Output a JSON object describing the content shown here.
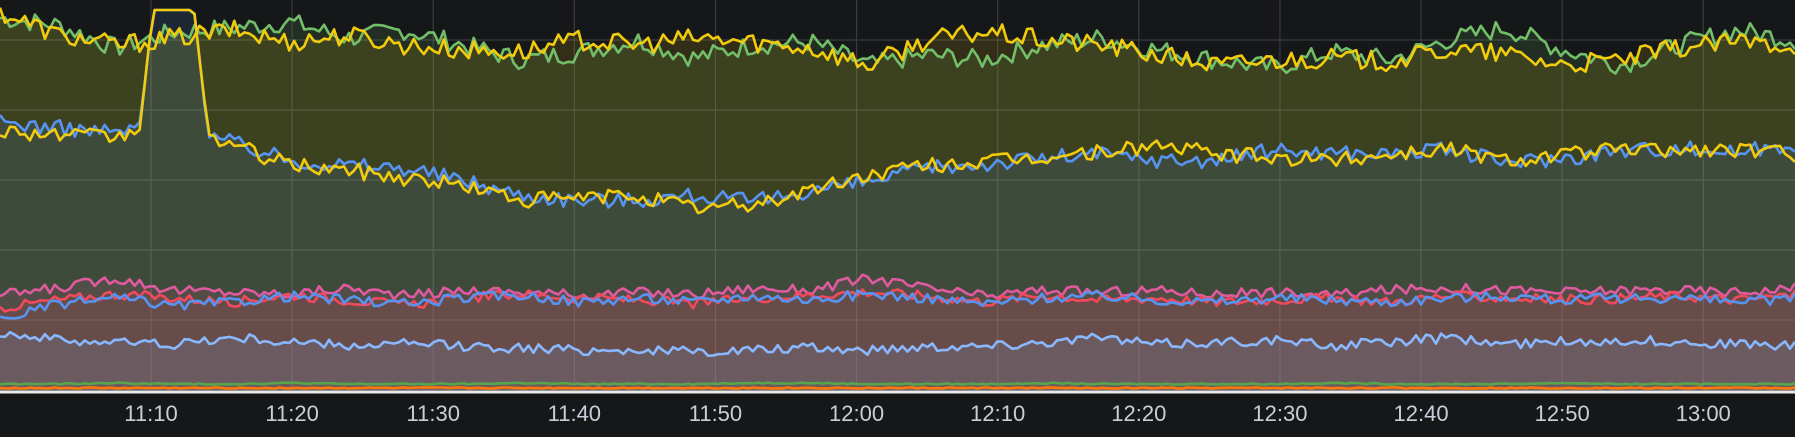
{
  "chart_data": {
    "type": "area",
    "x_ticks": [
      "11:10",
      "11:20",
      "11:30",
      "11:40",
      "11:50",
      "12:00",
      "12:10",
      "12:20",
      "12:30",
      "12:40",
      "12:50",
      "13:00"
    ],
    "x_start_minute": 659.3,
    "x_end_minute": 786.5,
    "ylim": [
      0,
      390
    ],
    "grid": true,
    "legend": "none",
    "series": [
      {
        "color": "#73bf69",
        "fill": "#73bf69",
        "values": [
          372,
          365,
          342,
          358,
          362,
          368,
          352,
          360,
          345,
          330,
          338,
          350,
          332,
          345,
          348,
          325,
          335,
          330,
          345,
          352,
          340,
          330,
          322,
          338,
          330,
          350,
          362,
          340,
          325,
          345,
          360,
          350
        ]
      },
      {
        "color": "#f2cc0c",
        "fill": "#f2cc0c",
        "values": [
          378,
          355,
          345,
          352,
          360,
          348,
          355,
          345,
          340,
          338,
          350,
          345,
          352,
          348,
          342,
          325,
          350,
          358,
          350,
          345,
          335,
          325,
          330,
          332,
          328,
          340,
          336,
          325,
          330,
          342,
          348,
          345
        ]
      },
      {
        "color": "#5794f2",
        "fill": "#5794f2",
        "spike": [
          3,
          380
        ],
        "values": [
          268,
          262,
          258,
          265,
          248,
          230,
          225,
          222,
          210,
          195,
          190,
          190,
          195,
          188,
          200,
          208,
          222,
          226,
          232,
          236,
          230,
          230,
          240,
          238,
          236,
          240,
          228,
          232,
          240,
          242,
          238,
          246
        ]
      },
      {
        "color": "#f2cc0c",
        "fill": "none",
        "spike": [
          3,
          380
        ],
        "values": [
          260,
          255,
          252,
          270,
          245,
          225,
          220,
          212,
          205,
          190,
          192,
          195,
          182,
          185,
          200,
          215,
          225,
          228,
          232,
          238,
          245,
          236,
          232,
          230,
          236,
          242,
          230,
          236,
          240,
          240,
          240,
          236
        ]
      },
      {
        "color": "#e05a9f",
        "fill": "#e05a9f",
        "values": [
          95,
          102,
          112,
          100,
          98,
          96,
          102,
          94,
          100,
          98,
          95,
          98,
          96,
          102,
          100,
          112,
          102,
          94,
          100,
          98,
          100,
          96,
          98,
          95,
          100,
          102,
          100,
          98,
          100,
          100,
          98,
          102
        ]
      },
      {
        "color": "#f2495c",
        "fill": "#f2495c",
        "values": [
          82,
          90,
          96,
          92,
          88,
          95,
          90,
          85,
          92,
          96,
          92,
          90,
          86,
          92,
          95,
          98,
          94,
          88,
          95,
          90,
          92,
          88,
          90,
          92,
          88,
          94,
          92,
          90,
          92,
          94,
          90,
          95
        ]
      },
      {
        "color": "#5794f2",
        "fill": "none",
        "values": [
          70,
          86,
          92,
          84,
          88,
          94,
          90,
          86,
          92,
          95,
          88,
          92,
          88,
          94,
          90,
          96,
          92,
          86,
          92,
          94,
          90,
          88,
          92,
          90,
          88,
          92,
          94,
          90,
          92,
          92,
          88,
          92
        ]
      },
      {
        "color": "#8ab8ff",
        "fill": "#8ab8ff",
        "values": [
          58,
          50,
          48,
          46,
          52,
          48,
          44,
          46,
          44,
          42,
          40,
          40,
          38,
          40,
          42,
          40,
          44,
          44,
          48,
          52,
          46,
          48,
          50,
          44,
          48,
          52,
          46,
          48,
          50,
          48,
          46,
          44
        ]
      },
      {
        "color": "#56a64b",
        "fill": "none",
        "values": [
          6,
          6,
          7,
          6,
          6,
          7,
          6,
          6,
          6,
          7,
          6,
          6,
          6,
          7,
          7,
          6,
          6,
          6,
          7,
          6,
          6,
          6,
          6,
          7,
          6,
          6,
          6,
          7,
          6,
          6,
          6,
          6
        ]
      },
      {
        "color": "#ff780a",
        "fill": "none",
        "values": [
          2,
          2,
          2,
          2,
          2,
          2,
          2,
          2,
          2,
          2,
          2,
          2,
          2,
          2,
          2,
          2,
          2,
          2,
          2,
          2,
          2,
          2,
          2,
          2,
          2,
          2,
          2,
          2,
          2,
          2,
          2,
          2
        ]
      }
    ]
  }
}
